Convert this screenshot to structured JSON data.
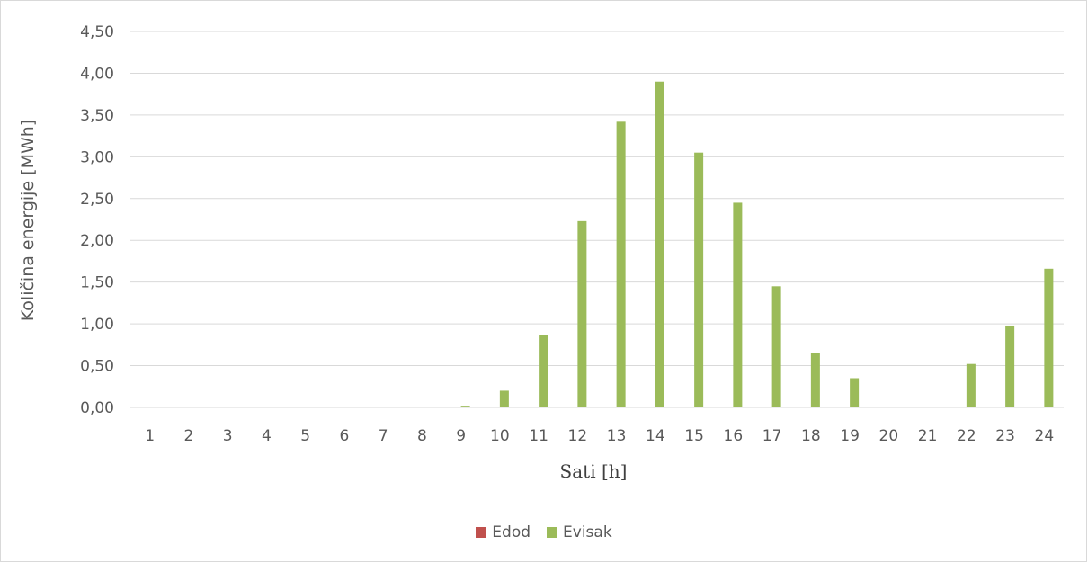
{
  "chart_data": {
    "type": "bar",
    "title": "",
    "xlabel": "Sati [h]",
    "ylabel": "Količina energije [MWh]",
    "ylim": [
      0,
      4.5
    ],
    "yticks": [
      "0,00",
      "0,50",
      "1,00",
      "1,50",
      "2,00",
      "2,50",
      "3,00",
      "3,50",
      "4,00",
      "4,50"
    ],
    "grid": true,
    "legend_position": "bottom",
    "categories": [
      "1",
      "2",
      "3",
      "4",
      "5",
      "6",
      "7",
      "8",
      "9",
      "10",
      "11",
      "12",
      "13",
      "14",
      "15",
      "16",
      "17",
      "18",
      "19",
      "20",
      "21",
      "22",
      "23",
      "24"
    ],
    "series": [
      {
        "name": "Edod",
        "color": "#c0504d",
        "values": [
          0,
          0,
          0,
          0,
          0,
          0,
          0,
          0,
          0,
          0,
          0,
          0,
          0,
          0,
          0,
          0,
          0,
          0,
          0,
          0,
          0,
          0,
          0,
          0
        ]
      },
      {
        "name": "Evisak",
        "color": "#9bbb59",
        "values": [
          0,
          0,
          0,
          0,
          0,
          0,
          0,
          0,
          0.02,
          0.2,
          0.87,
          2.23,
          3.42,
          3.9,
          3.05,
          2.45,
          1.45,
          0.65,
          0.35,
          0,
          0,
          0.52,
          0.98,
          1.66
        ]
      }
    ]
  }
}
